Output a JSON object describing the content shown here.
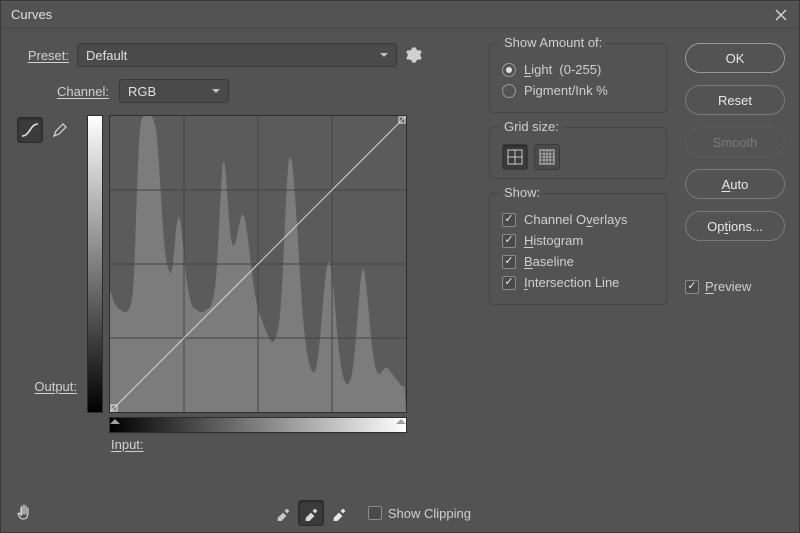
{
  "dialog": {
    "title": "Curves",
    "preset_label": "Preset:",
    "preset_value": "Default",
    "channel_label": "Channel:",
    "channel_value": "RGB",
    "output_label": "Output:",
    "input_label": "Input:",
    "show_clipping_label": "Show Clipping"
  },
  "show_amount": {
    "legend": "Show Amount of:",
    "light_label": "Light  (0-255)",
    "pigment_label": "Pigment/Ink %",
    "selected": "light"
  },
  "grid": {
    "legend": "Grid size:"
  },
  "show": {
    "legend": "Show:",
    "channel_overlays": "Channel Overlays",
    "histogram": "Histogram",
    "baseline": "Baseline",
    "intersection": "Intersection Line"
  },
  "buttons": {
    "ok": "OK",
    "reset": "Reset",
    "smooth": "Smooth",
    "auto": "Auto",
    "options": "Options...",
    "preview": "Preview"
  },
  "chart": {
    "type": "curves-editor",
    "size": 296,
    "background": "#5b5b5b",
    "grid_color": "#444444",
    "grid_divisions": 4,
    "diag_color": "#d6d6d6",
    "diag_width": 1,
    "handle_color": "#e8e8e8",
    "histogram_color": "#7c7c7c",
    "histogram_values": [
      120,
      118,
      112,
      108,
      106,
      104,
      103,
      102,
      101,
      100,
      100,
      100,
      102,
      104,
      110,
      120,
      145,
      190,
      235,
      270,
      288,
      294,
      296,
      296,
      296,
      296,
      296,
      296,
      294,
      290,
      284,
      270,
      250,
      225,
      200,
      178,
      162,
      150,
      144,
      140,
      138,
      146,
      160,
      178,
      190,
      195,
      192,
      180,
      165,
      148,
      134,
      124,
      116,
      110,
      106,
      104,
      103,
      102,
      101,
      100,
      100,
      100,
      101,
      102,
      103,
      104,
      106,
      110,
      116,
      126,
      144,
      170,
      202,
      230,
      250,
      250,
      236,
      214,
      192,
      176,
      168,
      166,
      168,
      174,
      182,
      190,
      196,
      198,
      195,
      188,
      178,
      166,
      152,
      140,
      128,
      118,
      110,
      104,
      98,
      94,
      90,
      86,
      82,
      78,
      75,
      72,
      70,
      70,
      72,
      76,
      82,
      92,
      108,
      132,
      164,
      200,
      230,
      250,
      255,
      252,
      240,
      222,
      200,
      176,
      150,
      126,
      104,
      86,
      72,
      60,
      52,
      46,
      42,
      40,
      40,
      44,
      52,
      64,
      80,
      98,
      116,
      132,
      144,
      150,
      150,
      142,
      130,
      114,
      96,
      78,
      62,
      50,
      40,
      34,
      30,
      28,
      28,
      30,
      34,
      42,
      54,
      70,
      90,
      110,
      128,
      140,
      144,
      138,
      126,
      110,
      92,
      76,
      62,
      52,
      44,
      40,
      38,
      38,
      40,
      42,
      44,
      44,
      44,
      42,
      40,
      38,
      36,
      34,
      32,
      30,
      28,
      26,
      26,
      26
    ]
  },
  "colors": {
    "panel": "#535353",
    "text": "#d0d0d0",
    "border": "#3a3a3a"
  }
}
